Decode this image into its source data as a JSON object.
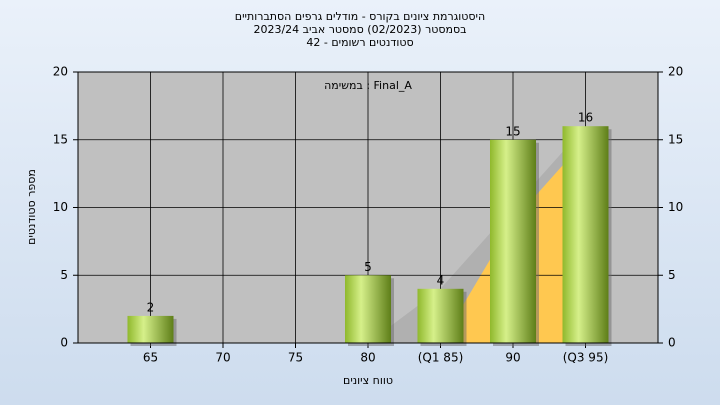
{
  "chart_data": {
    "type": "bar",
    "title": "היסטוגרמת ציונים בקורס - מודלים גרפים הסתברותיים",
    "subtitle": [
      "בסמסטר (02/2023) סמסטר אביב 2023/24",
      "סטודנטים רשומים - 42"
    ],
    "annotation": "במשימה : Final_A",
    "x_label": "טווח ציונים",
    "y_label": "מספר סטודנטים",
    "categories": [
      "65",
      "70",
      "75",
      "80",
      "(Q1 85)",
      "90",
      "(Q3 95)"
    ],
    "values": [
      2,
      0,
      0,
      5,
      4,
      15,
      16
    ],
    "color": "#9cc33c",
    "areas": [
      {
        "color": "#b0b0b0",
        "values": [
          null,
          null,
          null,
          0,
          4,
          10,
          16
        ]
      },
      {
        "color": "#ffc850",
        "values": [
          null,
          null,
          null,
          null,
          0,
          9,
          15
        ]
      }
    ],
    "ylim": [
      0,
      20
    ],
    "yticks": [
      0,
      5,
      10,
      15,
      20
    ],
    "y2lim": [
      0,
      20
    ],
    "y2ticks": [
      0,
      5,
      10,
      15,
      20
    ],
    "grid": true
  }
}
